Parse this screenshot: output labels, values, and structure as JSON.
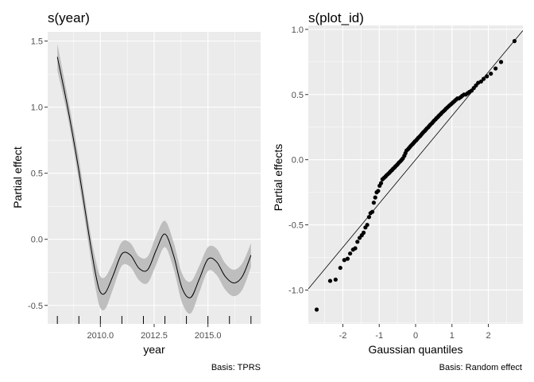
{
  "colors": {
    "panel_bg": "#EBEBEB",
    "grid_major": "#FFFFFF",
    "ribbon": "#BEBEBE",
    "line": "#000000",
    "points": "#000000",
    "text": "#000000",
    "axis_text": "#4D4D4D"
  },
  "chart_data": [
    {
      "type": "line",
      "title": "s(year)",
      "xlabel": "year",
      "ylabel": "Partial effect",
      "caption": "Basis: TPRS",
      "xlim": [
        2007.55,
        2017.45
      ],
      "ylim": [
        -0.64,
        1.57
      ],
      "x_ticks": [
        2010.0,
        2012.5,
        2015.0
      ],
      "x_tick_labels": [
        "2010.0",
        "2012.5",
        "2015.0"
      ],
      "y_ticks": [
        -0.5,
        0.0,
        0.5,
        1.0,
        1.5
      ],
      "y_tick_labels": [
        "-0.5",
        "0.0",
        "0.5",
        "1.0",
        "1.5"
      ],
      "grid": true,
      "rug_x": [
        2008,
        2009,
        2010,
        2011,
        2012,
        2013,
        2014,
        2015,
        2016,
        2017
      ],
      "series": [
        {
          "x": [
            2008.0,
            2008.5,
            2009.0,
            2009.5,
            2009.8,
            2010.0,
            2010.25,
            2010.6,
            2011.0,
            2011.4,
            2011.8,
            2012.2,
            2012.6,
            2013.0,
            2013.4,
            2013.8,
            2014.2,
            2014.6,
            2015.0,
            2015.4,
            2015.8,
            2016.2,
            2016.6,
            2017.0
          ],
          "y": [
            1.38,
            0.98,
            0.52,
            0.0,
            -0.28,
            -0.4,
            -0.4,
            -0.27,
            -0.11,
            -0.12,
            -0.22,
            -0.23,
            -0.08,
            0.04,
            -0.12,
            -0.37,
            -0.44,
            -0.3,
            -0.15,
            -0.17,
            -0.28,
            -0.33,
            -0.28,
            -0.12
          ],
          "lower": [
            1.28,
            0.91,
            0.44,
            -0.09,
            -0.39,
            -0.52,
            -0.52,
            -0.37,
            -0.2,
            -0.21,
            -0.31,
            -0.33,
            -0.19,
            -0.06,
            -0.22,
            -0.48,
            -0.56,
            -0.4,
            -0.24,
            -0.27,
            -0.38,
            -0.43,
            -0.38,
            -0.21
          ],
          "upper": [
            1.48,
            1.06,
            0.61,
            0.08,
            -0.17,
            -0.28,
            -0.28,
            -0.17,
            -0.02,
            -0.03,
            -0.13,
            -0.13,
            0.03,
            0.14,
            -0.02,
            -0.26,
            -0.32,
            -0.2,
            -0.06,
            -0.07,
            -0.18,
            -0.23,
            -0.18,
            -0.03
          ]
        }
      ]
    },
    {
      "type": "scatter",
      "title": "s(plot_id)",
      "xlabel": "Gaussian quantiles",
      "ylabel": "Partial effects",
      "caption": "Basis: Random effect",
      "xlim": [
        -2.95,
        2.95
      ],
      "ylim": [
        -1.26,
        1.03
      ],
      "x_ticks": [
        -2,
        -1,
        0,
        1,
        2
      ],
      "x_tick_labels": [
        "-2",
        "-1",
        "0",
        "1",
        "2"
      ],
      "y_ticks": [
        -1.0,
        -0.5,
        0.0,
        0.5,
        1.0
      ],
      "y_tick_labels": [
        "-1.0",
        "-0.5",
        "0.0",
        "0.5",
        "1.0"
      ],
      "grid": true,
      "reference_line": {
        "intercept": 0.0,
        "slope": 0.336
      },
      "x": [
        -2.72,
        -2.35,
        -2.2,
        -2.07,
        -1.96,
        -1.87,
        -1.8,
        -1.72,
        -1.66,
        -1.6,
        -1.54,
        -1.48,
        -1.43,
        -1.38,
        -1.33,
        -1.28,
        -1.24,
        -1.19,
        -1.15,
        -1.11,
        -1.07,
        -1.03,
        -0.99,
        -0.95,
        -0.91,
        -0.87,
        -0.83,
        -0.8,
        -0.76,
        -0.72,
        -0.69,
        -0.65,
        -0.62,
        -0.58,
        -0.55,
        -0.51,
        -0.48,
        -0.45,
        -0.41,
        -0.38,
        -0.35,
        -0.31,
        -0.28,
        -0.25,
        -0.21,
        -0.18,
        -0.15,
        -0.12,
        -0.08,
        -0.05,
        -0.02,
        0.02,
        0.05,
        0.08,
        0.12,
        0.15,
        0.18,
        0.21,
        0.25,
        0.28,
        0.31,
        0.35,
        0.38,
        0.41,
        0.45,
        0.48,
        0.51,
        0.55,
        0.58,
        0.62,
        0.65,
        0.69,
        0.72,
        0.76,
        0.8,
        0.83,
        0.87,
        0.91,
        0.95,
        0.99,
        1.03,
        1.07,
        1.11,
        1.15,
        1.19,
        1.24,
        1.28,
        1.33,
        1.38,
        1.43,
        1.48,
        1.54,
        1.6,
        1.66,
        1.72,
        1.8,
        1.87,
        1.96,
        2.07,
        2.2,
        2.35,
        2.72
      ],
      "y": [
        -1.15,
        -0.93,
        -0.92,
        -0.83,
        -0.77,
        -0.76,
        -0.72,
        -0.69,
        -0.68,
        -0.63,
        -0.6,
        -0.58,
        -0.56,
        -0.52,
        -0.5,
        -0.44,
        -0.41,
        -0.4,
        -0.33,
        -0.29,
        -0.25,
        -0.24,
        -0.2,
        -0.18,
        -0.15,
        -0.14,
        -0.13,
        -0.12,
        -0.11,
        -0.1,
        -0.09,
        -0.08,
        -0.07,
        -0.06,
        -0.05,
        -0.04,
        -0.03,
        -0.02,
        -0.01,
        0.0,
        0.01,
        0.03,
        0.05,
        0.07,
        0.08,
        0.09,
        0.1,
        0.11,
        0.12,
        0.13,
        0.14,
        0.15,
        0.16,
        0.17,
        0.18,
        0.19,
        0.2,
        0.21,
        0.22,
        0.23,
        0.24,
        0.25,
        0.26,
        0.27,
        0.28,
        0.29,
        0.3,
        0.31,
        0.32,
        0.33,
        0.34,
        0.35,
        0.36,
        0.37,
        0.38,
        0.39,
        0.4,
        0.41,
        0.42,
        0.43,
        0.44,
        0.45,
        0.46,
        0.47,
        0.47,
        0.48,
        0.49,
        0.5,
        0.5,
        0.51,
        0.52,
        0.53,
        0.55,
        0.57,
        0.59,
        0.6,
        0.62,
        0.64,
        0.66,
        0.7,
        0.75,
        0.91
      ]
    }
  ]
}
